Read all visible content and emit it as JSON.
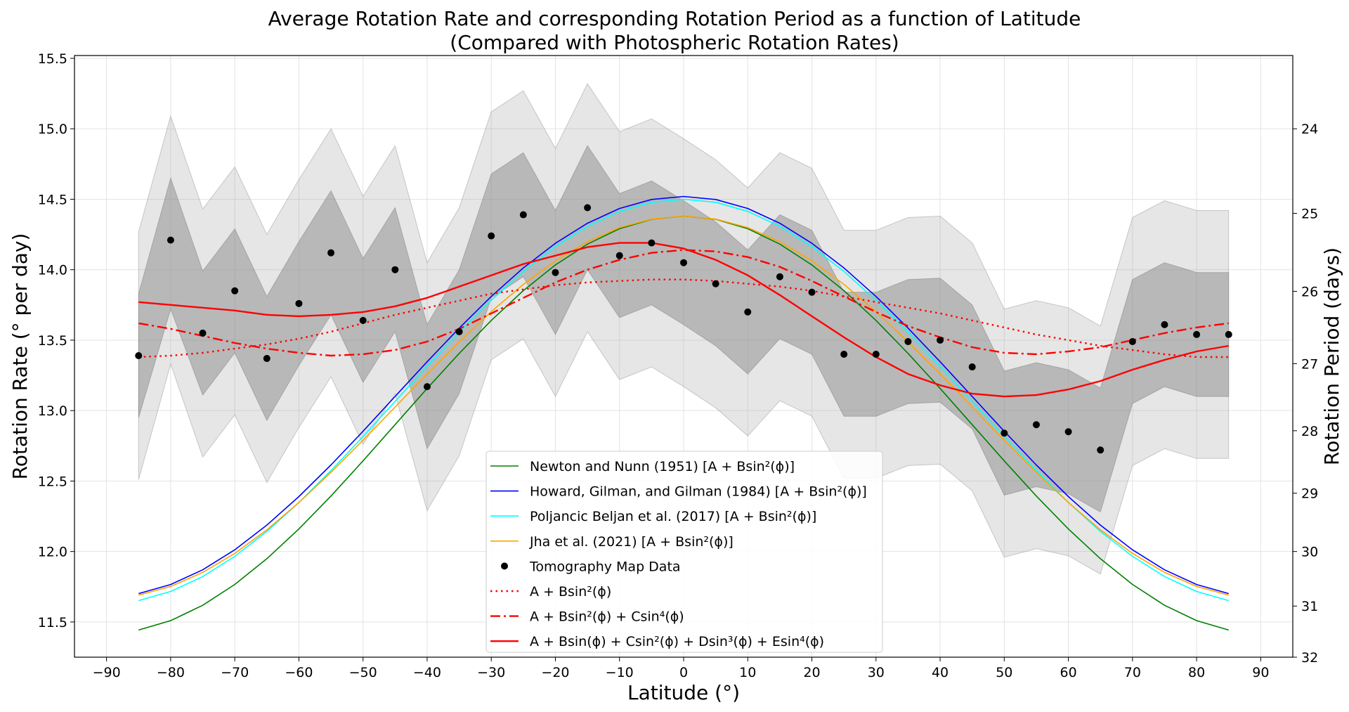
{
  "chart_data": {
    "type": "line",
    "title_line1": "Average Rotation Rate and corresponding Rotation Period as a function of Latitude",
    "title_line2": "(Compared with Photospheric Rotation Rates)",
    "xlabel": "Latitude (°)",
    "ylabel": "Rotation Rate (° per day)",
    "y2label": "Rotation Period (days)",
    "xlim": [
      -95,
      95
    ],
    "ylim": [
      11.25,
      15.52
    ],
    "x_ticks": [
      -90,
      -80,
      -70,
      -60,
      -50,
      -40,
      -30,
      -20,
      -10,
      0,
      10,
      20,
      30,
      40,
      50,
      60,
      70,
      80,
      90
    ],
    "x_tick_labels": [
      "−90",
      "−80",
      "−70",
      "−60",
      "−50",
      "−40",
      "−30",
      "−20",
      "−10",
      "0",
      "10",
      "20",
      "30",
      "40",
      "50",
      "60",
      "70",
      "80",
      "90"
    ],
    "y_ticks": [
      11.5,
      12.0,
      12.5,
      13.0,
      13.5,
      14.0,
      14.5,
      15.0,
      15.5
    ],
    "y_tick_labels": [
      "11.5",
      "12.0",
      "12.5",
      "13.0",
      "13.5",
      "14.0",
      "14.5",
      "15.0",
      "15.5"
    ],
    "y2_ticks": [
      24,
      25,
      26,
      27,
      28,
      29,
      30,
      31,
      32
    ],
    "y2_tick_labels": [
      "24",
      "25",
      "26",
      "27",
      "28",
      "29",
      "30",
      "31",
      "32"
    ],
    "grid": true,
    "legend_position": "bottom-center",
    "latitudes": [
      -85,
      -80,
      -75,
      -70,
      -65,
      -60,
      -55,
      -50,
      -45,
      -40,
      -35,
      -30,
      -25,
      -20,
      -15,
      -10,
      -5,
      0,
      5,
      10,
      15,
      20,
      25,
      30,
      35,
      40,
      45,
      50,
      55,
      60,
      65,
      70,
      75,
      80,
      85
    ],
    "tomography": [
      13.39,
      14.21,
      13.55,
      13.85,
      13.37,
      13.76,
      14.12,
      13.64,
      14.0,
      13.17,
      13.56,
      14.24,
      14.39,
      13.98,
      14.44,
      14.1,
      14.19,
      14.05,
      13.9,
      13.7,
      13.95,
      13.84,
      13.4,
      13.4,
      13.49,
      13.5,
      13.31,
      12.84,
      12.9,
      12.85,
      12.72,
      13.49,
      13.61,
      13.54,
      13.54
    ],
    "band_1sigma_lower": [
      12.95,
      13.72,
      13.11,
      13.41,
      12.93,
      13.32,
      13.68,
      13.2,
      13.56,
      12.73,
      13.12,
      13.8,
      13.95,
      13.54,
      14.0,
      13.66,
      13.75,
      13.61,
      13.46,
      13.26,
      13.51,
      13.4,
      12.96,
      12.96,
      13.05,
      13.06,
      12.87,
      12.4,
      12.46,
      12.41,
      12.28,
      13.05,
      13.17,
      13.1,
      13.1
    ],
    "band_1sigma_upper": [
      13.83,
      14.65,
      13.99,
      14.29,
      13.81,
      14.2,
      14.56,
      14.08,
      14.44,
      13.61,
      14.0,
      14.68,
      14.83,
      14.42,
      14.88,
      14.54,
      14.63,
      14.49,
      14.34,
      14.14,
      14.39,
      14.28,
      13.84,
      13.84,
      13.93,
      13.94,
      13.75,
      13.28,
      13.34,
      13.29,
      13.16,
      13.93,
      14.05,
      13.98,
      13.98
    ],
    "band_2sigma_lower": [
      12.51,
      13.33,
      12.67,
      12.97,
      12.49,
      12.88,
      13.24,
      12.76,
      13.12,
      12.29,
      12.68,
      13.36,
      13.51,
      13.1,
      13.56,
      13.22,
      13.31,
      13.17,
      13.02,
      12.82,
      13.07,
      12.96,
      12.52,
      12.52,
      12.61,
      12.62,
      12.43,
      11.96,
      12.02,
      11.97,
      11.84,
      12.61,
      12.73,
      12.66,
      12.66
    ],
    "band_2sigma_upper": [
      14.27,
      15.09,
      14.43,
      14.73,
      14.25,
      14.64,
      15.0,
      14.52,
      14.88,
      14.05,
      14.44,
      15.12,
      15.27,
      14.86,
      15.32,
      14.98,
      15.07,
      14.93,
      14.78,
      14.58,
      14.83,
      14.72,
      14.28,
      14.28,
      14.37,
      14.38,
      14.19,
      13.72,
      13.78,
      13.73,
      13.6,
      14.37,
      14.49,
      14.42,
      14.42
    ],
    "series": [
      {
        "name": "Newton and Nunn (1951) [A + Bsin²(ϕ)]",
        "kind": "sin2",
        "A": 14.38,
        "B": -2.96,
        "color": "#008000",
        "style": "solid",
        "width": 1.6
      },
      {
        "name": "Howard, Gilman, and Gilman (1984) [A + Bsin²(ϕ)]",
        "kind": "sin2",
        "A": 14.52,
        "B": -2.84,
        "color": "#0000ff",
        "style": "solid",
        "width": 1.6
      },
      {
        "name": "Poljancic Beljan et al. (2017) [A + Bsin²(ϕ)]",
        "kind": "sin2",
        "A": 14.5,
        "B": -2.87,
        "color": "#00ffff",
        "style": "solid",
        "width": 1.6
      },
      {
        "name": "Jha et al. (2021) [A + Bsin²(ϕ)]",
        "kind": "sin2",
        "A": 14.38,
        "B": -2.71,
        "color": "#ffa500",
        "style": "solid",
        "width": 1.6
      },
      {
        "name": "A + Bsin²(ϕ)",
        "kind": "points",
        "color": "#ff0000",
        "style": "dotted",
        "width": 2.4,
        "values": [
          13.38,
          13.39,
          13.41,
          13.44,
          13.47,
          13.51,
          13.56,
          13.62,
          13.68,
          13.73,
          13.78,
          13.83,
          13.86,
          13.89,
          13.91,
          13.92,
          13.93,
          13.93,
          13.92,
          13.9,
          13.88,
          13.85,
          13.81,
          13.77,
          13.73,
          13.69,
          13.64,
          13.59,
          13.54,
          13.5,
          13.46,
          13.43,
          13.4,
          13.38,
          13.38
        ]
      },
      {
        "name": "A + Bsin²(ϕ) + Csin⁴(ϕ)",
        "kind": "points",
        "color": "#ff0000",
        "style": "dashdot",
        "width": 2.4,
        "values": [
          13.62,
          13.58,
          13.53,
          13.48,
          13.44,
          13.41,
          13.39,
          13.4,
          13.43,
          13.49,
          13.58,
          13.69,
          13.8,
          13.91,
          14.0,
          14.07,
          14.12,
          14.14,
          14.13,
          14.09,
          14.02,
          13.92,
          13.81,
          13.7,
          13.6,
          13.52,
          13.45,
          13.41,
          13.4,
          13.42,
          13.45,
          13.5,
          13.55,
          13.59,
          13.62
        ]
      },
      {
        "name": "A + Bsin(ϕ) + Csin²(ϕ) + Dsin³(ϕ) + Esin⁴(ϕ)",
        "kind": "points",
        "color": "#ff0000",
        "style": "solid",
        "width": 2.4,
        "values": [
          13.77,
          13.75,
          13.73,
          13.71,
          13.68,
          13.67,
          13.68,
          13.7,
          13.74,
          13.8,
          13.88,
          13.96,
          14.04,
          14.1,
          14.16,
          14.19,
          14.19,
          14.15,
          14.07,
          13.96,
          13.82,
          13.67,
          13.52,
          13.38,
          13.26,
          13.18,
          13.12,
          13.1,
          13.11,
          13.15,
          13.21,
          13.29,
          13.36,
          13.42,
          13.46
        ]
      }
    ],
    "points_legend": "Tomography Map Data"
  }
}
